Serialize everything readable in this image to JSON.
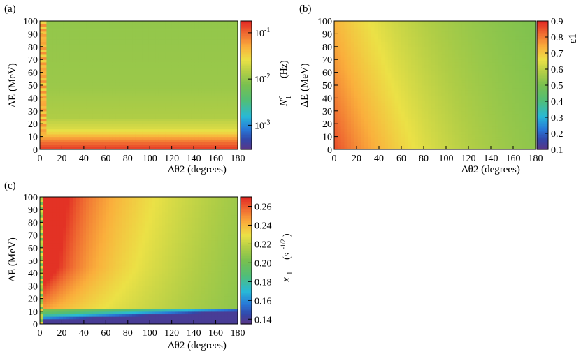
{
  "chart_data": [
    {
      "type": "heatmap",
      "panel_label": "(a)",
      "xlabel": "Δθ2  (degrees)",
      "ylabel": "ΔE  (MeV)",
      "colorbar_label": "N^c_1   (Hz)",
      "xlim": [
        0,
        180
      ],
      "ylim": [
        0,
        100
      ],
      "x_ticks": [
        0,
        20,
        40,
        60,
        80,
        100,
        120,
        140,
        160,
        180
      ],
      "y_ticks": [
        0,
        10,
        20,
        30,
        40,
        50,
        60,
        70,
        80,
        90,
        100
      ],
      "colorbar": {
        "scale": "log",
        "range": [
          0.0003,
          0.18
        ],
        "ticks": [
          0.001,
          0.01,
          0.1
        ],
        "tick_labels": [
          "10^-3",
          "10^-2",
          "10^-1"
        ]
      },
      "description_values": {
        "dE_profile_at_large_dtheta": [
          {
            "dE": 0,
            "value": 0.15
          },
          {
            "dE": 5,
            "value": 0.1
          },
          {
            "dE": 9,
            "value": 0.06
          },
          {
            "dE": 12,
            "value": 0.035
          },
          {
            "dE": 16,
            "value": 0.022
          },
          {
            "dE": 25,
            "value": 0.014
          },
          {
            "dE": 50,
            "value": 0.011
          },
          {
            "dE": 100,
            "value": 0.01
          }
        ],
        "small_dtheta_region": {
          "dtheta_max": 5,
          "value": 0.08
        }
      }
    },
    {
      "type": "heatmap",
      "panel_label": "(b)",
      "xlabel": "Δθ2  (degrees)",
      "ylabel": "ΔE  (MeV)",
      "colorbar_label": "ε1",
      "xlim": [
        0,
        180
      ],
      "ylim": [
        0,
        100
      ],
      "x_ticks": [
        0,
        20,
        40,
        60,
        80,
        100,
        120,
        140,
        160,
        180
      ],
      "y_ticks": [
        0,
        10,
        20,
        30,
        40,
        50,
        60,
        70,
        80,
        90,
        100
      ],
      "colorbar": {
        "scale": "linear",
        "range": [
          0.1,
          0.9
        ],
        "ticks": [
          0.1,
          0.2,
          0.3,
          0.4,
          0.5,
          0.6,
          0.7,
          0.8,
          0.9
        ],
        "tick_labels": [
          "0.1",
          "0.2",
          "0.3",
          "0.4",
          "0.5",
          "0.6",
          "0.7",
          "0.8",
          "0.9"
        ]
      },
      "description_values": {
        "corner_values": [
          {
            "dtheta": 0,
            "dE": 0,
            "value": 0.86
          },
          {
            "dtheta": 0,
            "dE": 100,
            "value": 0.86
          },
          {
            "dtheta": 80,
            "dE": 0,
            "value": 0.72
          },
          {
            "dtheta": 40,
            "dE": 100,
            "value": 0.72
          },
          {
            "dtheta": 180,
            "dE": 0,
            "value": 0.58
          },
          {
            "dtheta": 180,
            "dE": 100,
            "value": 0.56
          }
        ]
      }
    },
    {
      "type": "heatmap",
      "panel_label": "(c)",
      "xlabel": "Δθ2  (degrees)",
      "ylabel": "ΔE  (MeV)",
      "colorbar_label": "x1   (s^-1/2)",
      "xlim": [
        0,
        180
      ],
      "ylim": [
        0,
        100
      ],
      "x_ticks": [
        0,
        20,
        40,
        60,
        80,
        100,
        120,
        140,
        160,
        180
      ],
      "y_ticks": [
        0,
        10,
        20,
        30,
        40,
        50,
        60,
        70,
        80,
        90,
        100
      ],
      "colorbar": {
        "scale": "linear",
        "range": [
          0.135,
          0.27
        ],
        "ticks": [
          0.14,
          0.16,
          0.18,
          0.2,
          0.22,
          0.24,
          0.26
        ],
        "tick_labels": [
          "0.14",
          "0.16",
          "0.18",
          "0.20",
          "0.22",
          "0.24",
          "0.26"
        ]
      },
      "description_values": {
        "corner_values": [
          {
            "dtheta": 15,
            "dE": 100,
            "value": 0.265
          },
          {
            "dtheta": 100,
            "dE": 100,
            "value": 0.24
          },
          {
            "dtheta": 180,
            "dE": 100,
            "value": 0.215
          },
          {
            "dtheta": 20,
            "dE": 3,
            "value": 0.14
          },
          {
            "dtheta": 180,
            "dE": 5,
            "value": 0.14
          },
          {
            "dtheta": 100,
            "dE": 40,
            "value": 0.215
          }
        ]
      }
    }
  ]
}
